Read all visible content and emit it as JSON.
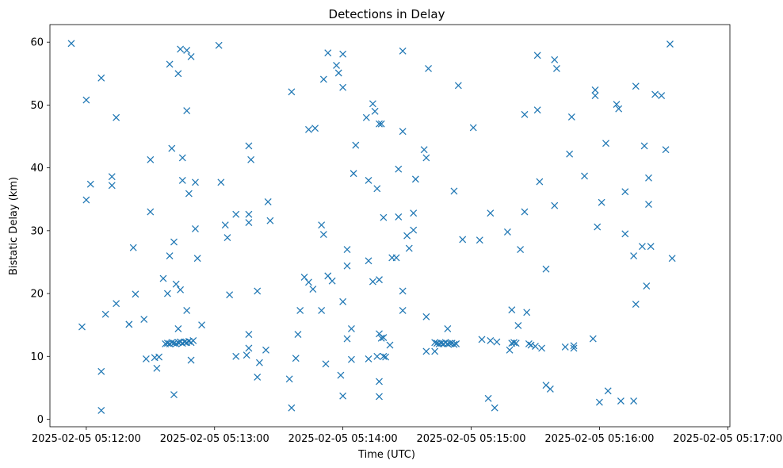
{
  "chart_data": {
    "type": "scatter",
    "title": "Detections in Delay",
    "xlabel": "Time (UTC)",
    "ylabel": "Bistatic Delay (km)",
    "x_type": "datetime",
    "xlim": [
      "2025-02-05 05:11:43",
      "2025-02-05 05:17:01"
    ],
    "ylim": [
      -1.2,
      62.8
    ],
    "x_ticks": [
      "2025-02-05 05:12:00",
      "2025-02-05 05:13:00",
      "2025-02-05 05:14:00",
      "2025-02-05 05:15:00",
      "2025-02-05 05:16:00",
      "2025-02-05 05:17:00"
    ],
    "x_tick_labels": [
      "2025-02-05 05:12:00",
      "2025-02-05 05:13:00",
      "2025-02-05 05:14:00",
      "2025-02-05 05:15:00",
      "2025-02-05 05:16:00",
      "2025-02-05 05:17:00"
    ],
    "y_ticks": [
      0,
      10,
      20,
      30,
      40,
      50,
      60
    ],
    "grid": false,
    "legend": "none",
    "marker": "x",
    "color": "#1f77b4",
    "series": [
      {
        "points": [
          [
            "05:11:53",
            59.8
          ],
          [
            "05:11:58",
            14.7
          ],
          [
            "05:12:00",
            50.8
          ],
          [
            "05:12:02",
            37.4
          ],
          [
            "05:12:00",
            34.9
          ],
          [
            "05:12:07",
            54.3
          ],
          [
            "05:12:07",
            7.6
          ],
          [
            "05:12:07",
            1.4
          ],
          [
            "05:12:09",
            16.7
          ],
          [
            "05:12:12",
            38.6
          ],
          [
            "05:12:12",
            37.2
          ],
          [
            "05:12:14",
            48.0
          ],
          [
            "05:12:14",
            18.4
          ],
          [
            "05:12:20",
            15.1
          ],
          [
            "05:12:22",
            27.3
          ],
          [
            "05:12:23",
            19.9
          ],
          [
            "05:12:27",
            15.9
          ],
          [
            "05:12:28",
            9.6
          ],
          [
            "05:12:30",
            33.0
          ],
          [
            "05:12:30",
            41.3
          ],
          [
            "05:12:32",
            9.8
          ],
          [
            "05:12:34",
            9.9
          ],
          [
            "05:12:33",
            8.1
          ],
          [
            "05:12:36",
            22.4
          ],
          [
            "05:12:39",
            56.5
          ],
          [
            "05:12:40",
            43.1
          ],
          [
            "05:12:39",
            26.0
          ],
          [
            "05:12:38",
            20.0
          ],
          [
            "05:12:41",
            28.2
          ],
          [
            "05:12:41",
            3.9
          ],
          [
            "05:12:42",
            21.5
          ],
          [
            "05:12:43",
            55.0
          ],
          [
            "05:12:44",
            58.9
          ],
          [
            "05:12:44",
            20.6
          ],
          [
            "05:12:43",
            14.4
          ],
          [
            "05:12:45",
            41.6
          ],
          [
            "05:12:45",
            38.0
          ],
          [
            "05:12:47",
            58.7
          ],
          [
            "05:12:47",
            49.1
          ],
          [
            "05:12:48",
            35.9
          ],
          [
            "05:12:47",
            17.3
          ],
          [
            "05:12:49",
            57.7
          ],
          [
            "05:12:49",
            9.4
          ],
          [
            "05:12:51",
            37.7
          ],
          [
            "05:12:51",
            30.3
          ],
          [
            "05:12:52",
            25.6
          ],
          [
            "05:12:54",
            15.0
          ],
          [
            "05:12:37",
            12.0
          ],
          [
            "05:12:38",
            12.1
          ],
          [
            "05:12:39",
            12.0
          ],
          [
            "05:12:40",
            12.2
          ],
          [
            "05:12:41",
            12.1
          ],
          [
            "05:12:42",
            12.0
          ],
          [
            "05:12:43",
            12.2
          ],
          [
            "05:12:44",
            12.3
          ],
          [
            "05:12:45",
            12.1
          ],
          [
            "05:12:46",
            12.3
          ],
          [
            "05:12:47",
            12.2
          ],
          [
            "05:12:48",
            12.4
          ],
          [
            "05:12:49",
            12.2
          ],
          [
            "05:12:50",
            12.5
          ],
          [
            "05:13:02",
            59.5
          ],
          [
            "05:13:03",
            37.7
          ],
          [
            "05:13:05",
            30.9
          ],
          [
            "05:13:06",
            28.9
          ],
          [
            "05:13:07",
            19.8
          ],
          [
            "05:13:10",
            32.6
          ],
          [
            "05:13:10",
            10.0
          ],
          [
            "05:13:15",
            10.2
          ],
          [
            "05:13:16",
            43.5
          ],
          [
            "05:13:16",
            32.6
          ],
          [
            "05:13:16",
            31.3
          ],
          [
            "05:13:16",
            13.5
          ],
          [
            "05:13:16",
            11.3
          ],
          [
            "05:13:17",
            41.3
          ],
          [
            "05:13:20",
            20.4
          ],
          [
            "05:13:20",
            6.7
          ],
          [
            "05:13:21",
            9.0
          ],
          [
            "05:13:24",
            11.0
          ],
          [
            "05:13:25",
            34.6
          ],
          [
            "05:13:26",
            31.6
          ],
          [
            "05:13:35",
            6.4
          ],
          [
            "05:13:36",
            52.1
          ],
          [
            "05:13:36",
            1.8
          ],
          [
            "05:13:38",
            9.7
          ],
          [
            "05:13:39",
            13.5
          ],
          [
            "05:13:40",
            17.3
          ],
          [
            "05:13:42",
            22.6
          ],
          [
            "05:13:44",
            46.1
          ],
          [
            "05:13:44",
            21.8
          ],
          [
            "05:13:47",
            46.3
          ],
          [
            "05:13:46",
            20.7
          ],
          [
            "05:13:51",
            54.1
          ],
          [
            "05:13:50",
            30.9
          ],
          [
            "05:13:51",
            29.4
          ],
          [
            "05:13:50",
            17.3
          ],
          [
            "05:13:52",
            8.8
          ],
          [
            "05:13:53",
            58.3
          ],
          [
            "05:13:53",
            22.8
          ],
          [
            "05:13:55",
            22.0
          ],
          [
            "05:13:57",
            56.3
          ],
          [
            "05:13:58",
            55.1
          ],
          [
            "05:13:59",
            7.0
          ],
          [
            "05:14:00",
            58.1
          ],
          [
            "05:14:00",
            52.8
          ],
          [
            "05:14:00",
            18.7
          ],
          [
            "05:14:00",
            3.7
          ],
          [
            "05:14:02",
            27.0
          ],
          [
            "05:14:02",
            24.4
          ],
          [
            "05:14:02",
            12.8
          ],
          [
            "05:14:04",
            14.4
          ],
          [
            "05:14:04",
            9.5
          ],
          [
            "05:14:05",
            39.1
          ],
          [
            "05:14:06",
            43.6
          ],
          [
            "05:14:11",
            48.0
          ],
          [
            "05:14:12",
            38.0
          ],
          [
            "05:14:12",
            25.2
          ],
          [
            "05:14:12",
            9.6
          ],
          [
            "05:14:14",
            21.9
          ],
          [
            "05:14:14",
            50.2
          ],
          [
            "05:14:15",
            49.0
          ],
          [
            "05:14:16",
            36.7
          ],
          [
            "05:14:16",
            10.0
          ],
          [
            "05:14:17",
            47.0
          ],
          [
            "05:14:17",
            22.2
          ],
          [
            "05:14:17",
            13.6
          ],
          [
            "05:14:17",
            6.0
          ],
          [
            "05:14:17",
            3.6
          ],
          [
            "05:14:18",
            47.0
          ],
          [
            "05:14:18",
            12.9
          ],
          [
            "05:14:19",
            32.1
          ],
          [
            "05:14:19",
            13.0
          ],
          [
            "05:14:19",
            10.0
          ],
          [
            "05:14:20",
            9.9
          ],
          [
            "05:14:22",
            11.8
          ],
          [
            "05:14:23",
            25.7
          ],
          [
            "05:14:25",
            25.7
          ],
          [
            "05:14:26",
            39.8
          ],
          [
            "05:14:26",
            32.2
          ],
          [
            "05:14:28",
            58.6
          ],
          [
            "05:14:28",
            45.8
          ],
          [
            "05:14:28",
            20.4
          ],
          [
            "05:14:28",
            17.3
          ],
          [
            "05:14:30",
            29.2
          ],
          [
            "05:14:31",
            27.2
          ],
          [
            "05:14:33",
            30.1
          ],
          [
            "05:14:33",
            32.8
          ],
          [
            "05:14:34",
            38.2
          ],
          [
            "05:14:38",
            42.9
          ],
          [
            "05:14:39",
            41.6
          ],
          [
            "05:14:39",
            16.3
          ],
          [
            "05:14:39",
            10.8
          ],
          [
            "05:14:40",
            55.8
          ],
          [
            "05:14:43",
            10.8
          ],
          [
            "05:14:43",
            12.2
          ],
          [
            "05:14:44",
            12.1
          ],
          [
            "05:14:45",
            12.0
          ],
          [
            "05:14:46",
            12.1
          ],
          [
            "05:14:47",
            12.0
          ],
          [
            "05:14:48",
            12.2
          ],
          [
            "05:14:49",
            12.0
          ],
          [
            "05:14:50",
            12.1
          ],
          [
            "05:14:51",
            12.1
          ],
          [
            "05:14:52",
            11.9
          ],
          [
            "05:14:53",
            12.0
          ],
          [
            "05:14:49",
            14.4
          ],
          [
            "05:14:52",
            36.3
          ],
          [
            "05:14:54",
            53.1
          ],
          [
            "05:14:56",
            28.6
          ],
          [
            "05:15:01",
            46.4
          ],
          [
            "05:15:04",
            28.5
          ],
          [
            "05:15:05",
            12.7
          ],
          [
            "05:15:08",
            3.3
          ],
          [
            "05:15:09",
            32.8
          ],
          [
            "05:15:09",
            12.5
          ],
          [
            "05:15:12",
            12.3
          ],
          [
            "05:15:11",
            1.8
          ],
          [
            "05:15:17",
            29.8
          ],
          [
            "05:15:18",
            11.0
          ],
          [
            "05:15:19",
            17.4
          ],
          [
            "05:15:19",
            12.1
          ],
          [
            "05:15:20",
            12.2
          ],
          [
            "05:15:21",
            12.1
          ],
          [
            "05:15:22",
            14.9
          ],
          [
            "05:15:23",
            27.0
          ],
          [
            "05:15:25",
            33.0
          ],
          [
            "05:15:25",
            48.5
          ],
          [
            "05:15:26",
            17.0
          ],
          [
            "05:15:27",
            12.0
          ],
          [
            "05:15:28",
            11.8
          ],
          [
            "05:15:30",
            11.6
          ],
          [
            "05:15:31",
            57.9
          ],
          [
            "05:15:31",
            49.2
          ],
          [
            "05:15:32",
            37.8
          ],
          [
            "05:15:33",
            11.3
          ],
          [
            "05:15:35",
            23.9
          ],
          [
            "05:15:35",
            5.4
          ],
          [
            "05:15:37",
            4.8
          ],
          [
            "05:15:39",
            57.2
          ],
          [
            "05:15:39",
            34.0
          ],
          [
            "05:15:40",
            55.8
          ],
          [
            "05:15:44",
            11.5
          ],
          [
            "05:15:46",
            42.2
          ],
          [
            "05:15:47",
            48.1
          ],
          [
            "05:15:48",
            11.3
          ],
          [
            "05:15:48",
            11.7
          ],
          [
            "05:15:53",
            38.7
          ],
          [
            "05:15:57",
            12.8
          ],
          [
            "05:15:58",
            52.4
          ],
          [
            "05:15:58",
            51.5
          ],
          [
            "05:15:59",
            30.6
          ],
          [
            "05:16:00",
            2.7
          ],
          [
            "05:16:01",
            34.5
          ],
          [
            "05:16:03",
            43.9
          ],
          [
            "05:16:04",
            4.5
          ],
          [
            "05:16:08",
            50.1
          ],
          [
            "05:16:09",
            49.4
          ],
          [
            "05:16:10",
            2.9
          ],
          [
            "05:16:12",
            36.2
          ],
          [
            "05:16:12",
            29.5
          ],
          [
            "05:16:16",
            26.0
          ],
          [
            "05:16:17",
            53.0
          ],
          [
            "05:16:17",
            18.3
          ],
          [
            "05:16:16",
            2.9
          ],
          [
            "05:16:20",
            27.5
          ],
          [
            "05:16:21",
            43.5
          ],
          [
            "05:16:22",
            21.2
          ],
          [
            "05:16:23",
            38.4
          ],
          [
            "05:16:23",
            34.2
          ],
          [
            "05:16:24",
            27.5
          ],
          [
            "05:16:26",
            51.7
          ],
          [
            "05:16:29",
            51.5
          ],
          [
            "05:16:31",
            42.9
          ],
          [
            "05:16:33",
            59.7
          ],
          [
            "05:16:34",
            25.6
          ]
        ]
      }
    ]
  }
}
